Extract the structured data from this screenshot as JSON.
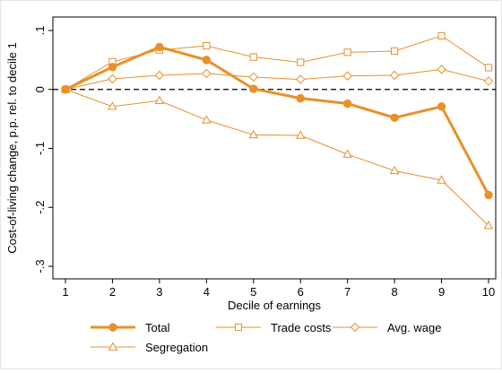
{
  "chart_data": {
    "type": "line",
    "xlabel": "Decile of earnings",
    "ylabel": "Cost-of-living change, p.p. rel. to decile 1",
    "x": [
      1,
      2,
      3,
      4,
      5,
      6,
      7,
      8,
      9,
      10
    ],
    "xlim": [
      1,
      10
    ],
    "ylim": [
      -0.3,
      0.1
    ],
    "x_ticks": [
      "1",
      "2",
      "3",
      "4",
      "5",
      "6",
      "7",
      "8",
      "9",
      "10"
    ],
    "y_ticks": [
      {
        "value": 0.1,
        "label": ".1"
      },
      {
        "value": 0,
        "label": "0"
      },
      {
        "value": -0.1,
        "label": "-.1"
      },
      {
        "value": -0.2,
        "label": "-.2"
      },
      {
        "value": -0.3,
        "label": "-.3"
      }
    ],
    "reference_line": {
      "value": 0,
      "style": "dashed"
    },
    "grid": false,
    "legend_position": "bottom",
    "color": "#e8902a",
    "series": [
      {
        "name": "Total",
        "marker": "circle",
        "values": [
          0,
          0.038,
          0.072,
          0.05,
          0.001,
          -0.015,
          -0.024,
          -0.048,
          -0.029,
          -0.179
        ]
      },
      {
        "name": "Trade costs",
        "marker": "square",
        "values": [
          0,
          0.047,
          0.067,
          0.074,
          0.055,
          0.046,
          0.063,
          0.065,
          0.091,
          0.037
        ]
      },
      {
        "name": "Avg. wage",
        "marker": "diamond",
        "values": [
          0,
          0.018,
          0.024,
          0.027,
          0.021,
          0.017,
          0.023,
          0.024,
          0.034,
          0.014
        ]
      },
      {
        "name": "Segregation",
        "marker": "triangle",
        "values": [
          0,
          -0.029,
          -0.019,
          -0.052,
          -0.077,
          -0.078,
          -0.11,
          -0.138,
          -0.154,
          -0.231
        ]
      }
    ]
  }
}
